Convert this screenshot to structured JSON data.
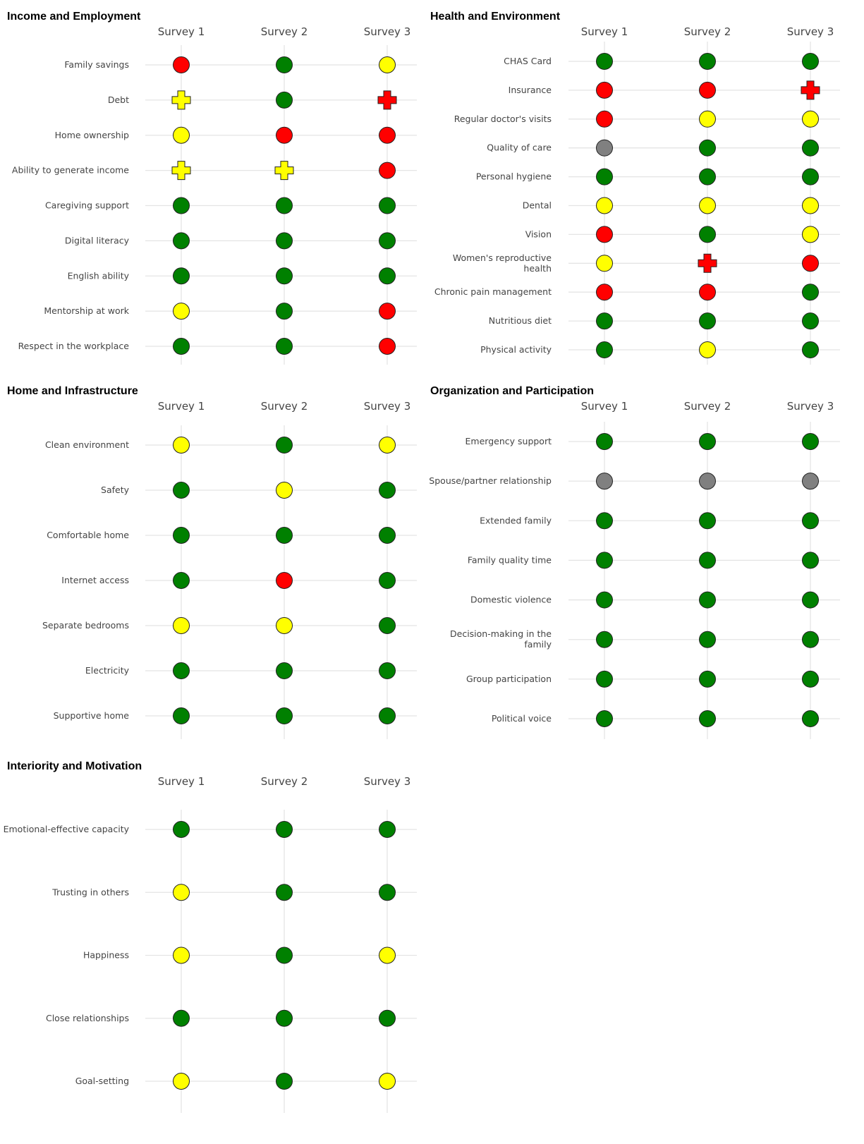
{
  "colors": {
    "green": "#008000",
    "yellow": "#ffff00",
    "red": "#ff0000",
    "gray": "#808080",
    "grid": "#e4e4e4",
    "label": "#444444"
  },
  "chart_data": [
    {
      "type": "scatter",
      "title": "Income and Employment",
      "columns": [
        "Survey 1",
        "Survey 2",
        "Survey 3"
      ],
      "rows": [
        {
          "label": "Family savings",
          "values": [
            {
              "c": "red",
              "s": "circle"
            },
            {
              "c": "green",
              "s": "circle"
            },
            {
              "c": "yellow",
              "s": "circle"
            }
          ]
        },
        {
          "label": "Debt",
          "values": [
            {
              "c": "yellow",
              "s": "plus"
            },
            {
              "c": "green",
              "s": "circle"
            },
            {
              "c": "red",
              "s": "plus"
            }
          ]
        },
        {
          "label": "Home ownership",
          "values": [
            {
              "c": "yellow",
              "s": "circle"
            },
            {
              "c": "red",
              "s": "circle"
            },
            {
              "c": "red",
              "s": "circle"
            }
          ]
        },
        {
          "label": "Ability to generate income",
          "values": [
            {
              "c": "yellow",
              "s": "plus"
            },
            {
              "c": "yellow",
              "s": "plus"
            },
            {
              "c": "red",
              "s": "circle"
            }
          ]
        },
        {
          "label": "Caregiving support",
          "values": [
            {
              "c": "green",
              "s": "circle"
            },
            {
              "c": "green",
              "s": "circle"
            },
            {
              "c": "green",
              "s": "circle"
            }
          ]
        },
        {
          "label": "Digital literacy",
          "values": [
            {
              "c": "green",
              "s": "circle"
            },
            {
              "c": "green",
              "s": "circle"
            },
            {
              "c": "green",
              "s": "circle"
            }
          ]
        },
        {
          "label": "English ability",
          "values": [
            {
              "c": "green",
              "s": "circle"
            },
            {
              "c": "green",
              "s": "circle"
            },
            {
              "c": "green",
              "s": "circle"
            }
          ]
        },
        {
          "label": "Mentorship at work",
          "values": [
            {
              "c": "yellow",
              "s": "circle"
            },
            {
              "c": "green",
              "s": "circle"
            },
            {
              "c": "red",
              "s": "circle"
            }
          ]
        },
        {
          "label": "Respect in the workplace",
          "values": [
            {
              "c": "green",
              "s": "circle"
            },
            {
              "c": "green",
              "s": "circle"
            },
            {
              "c": "red",
              "s": "circle"
            }
          ]
        }
      ]
    },
    {
      "type": "scatter",
      "title": "Health and Environment",
      "columns": [
        "Survey 1",
        "Survey 2",
        "Survey 3"
      ],
      "rows": [
        {
          "label": "CHAS Card",
          "values": [
            {
              "c": "green",
              "s": "circle"
            },
            {
              "c": "green",
              "s": "circle"
            },
            {
              "c": "green",
              "s": "circle"
            }
          ]
        },
        {
          "label": "Insurance",
          "values": [
            {
              "c": "red",
              "s": "circle"
            },
            {
              "c": "red",
              "s": "circle"
            },
            {
              "c": "red",
              "s": "plus"
            }
          ]
        },
        {
          "label": "Regular doctor's visits",
          "values": [
            {
              "c": "red",
              "s": "circle"
            },
            {
              "c": "yellow",
              "s": "circle"
            },
            {
              "c": "yellow",
              "s": "circle"
            }
          ]
        },
        {
          "label": "Quality of care",
          "values": [
            {
              "c": "gray",
              "s": "circle"
            },
            {
              "c": "green",
              "s": "circle"
            },
            {
              "c": "green",
              "s": "circle"
            }
          ]
        },
        {
          "label": "Personal hygiene",
          "values": [
            {
              "c": "green",
              "s": "circle"
            },
            {
              "c": "green",
              "s": "circle"
            },
            {
              "c": "green",
              "s": "circle"
            }
          ]
        },
        {
          "label": "Dental",
          "values": [
            {
              "c": "yellow",
              "s": "circle"
            },
            {
              "c": "yellow",
              "s": "circle"
            },
            {
              "c": "yellow",
              "s": "circle"
            }
          ]
        },
        {
          "label": "Vision",
          "values": [
            {
              "c": "red",
              "s": "circle"
            },
            {
              "c": "green",
              "s": "circle"
            },
            {
              "c": "yellow",
              "s": "circle"
            }
          ]
        },
        {
          "label": "Women's reproductive health",
          "lines": [
            "Women's reproductive",
            "health"
          ],
          "values": [
            {
              "c": "yellow",
              "s": "circle"
            },
            {
              "c": "red",
              "s": "plus"
            },
            {
              "c": "red",
              "s": "circle"
            }
          ]
        },
        {
          "label": "Chronic pain management",
          "values": [
            {
              "c": "red",
              "s": "circle"
            },
            {
              "c": "red",
              "s": "circle"
            },
            {
              "c": "green",
              "s": "circle"
            }
          ]
        },
        {
          "label": "Nutritious diet",
          "values": [
            {
              "c": "green",
              "s": "circle"
            },
            {
              "c": "green",
              "s": "circle"
            },
            {
              "c": "green",
              "s": "circle"
            }
          ]
        },
        {
          "label": "Physical activity",
          "values": [
            {
              "c": "green",
              "s": "circle"
            },
            {
              "c": "yellow",
              "s": "circle"
            },
            {
              "c": "green",
              "s": "circle"
            }
          ]
        }
      ]
    },
    {
      "type": "scatter",
      "title": "Home and Infrastructure",
      "columns": [
        "Survey 1",
        "Survey 2",
        "Survey 3"
      ],
      "rows": [
        {
          "label": "Clean environment",
          "values": [
            {
              "c": "yellow",
              "s": "circle"
            },
            {
              "c": "green",
              "s": "circle"
            },
            {
              "c": "yellow",
              "s": "circle"
            }
          ]
        },
        {
          "label": "Safety",
          "values": [
            {
              "c": "green",
              "s": "circle"
            },
            {
              "c": "yellow",
              "s": "circle"
            },
            {
              "c": "green",
              "s": "circle"
            }
          ]
        },
        {
          "label": "Comfortable home",
          "values": [
            {
              "c": "green",
              "s": "circle"
            },
            {
              "c": "green",
              "s": "circle"
            },
            {
              "c": "green",
              "s": "circle"
            }
          ]
        },
        {
          "label": "Internet access",
          "values": [
            {
              "c": "green",
              "s": "circle"
            },
            {
              "c": "red",
              "s": "circle"
            },
            {
              "c": "green",
              "s": "circle"
            }
          ]
        },
        {
          "label": "Separate bedrooms",
          "values": [
            {
              "c": "yellow",
              "s": "circle"
            },
            {
              "c": "yellow",
              "s": "circle"
            },
            {
              "c": "green",
              "s": "circle"
            }
          ]
        },
        {
          "label": "Electricity",
          "values": [
            {
              "c": "green",
              "s": "circle"
            },
            {
              "c": "green",
              "s": "circle"
            },
            {
              "c": "green",
              "s": "circle"
            }
          ]
        },
        {
          "label": "Supportive home",
          "values": [
            {
              "c": "green",
              "s": "circle"
            },
            {
              "c": "green",
              "s": "circle"
            },
            {
              "c": "green",
              "s": "circle"
            }
          ]
        }
      ]
    },
    {
      "type": "scatter",
      "title": "Organization and Participation",
      "columns": [
        "Survey 1",
        "Survey 2",
        "Survey 3"
      ],
      "rows": [
        {
          "label": "Emergency support",
          "values": [
            {
              "c": "green",
              "s": "circle"
            },
            {
              "c": "green",
              "s": "circle"
            },
            {
              "c": "green",
              "s": "circle"
            }
          ]
        },
        {
          "label": "Spouse/partner relationship",
          "values": [
            {
              "c": "gray",
              "s": "circle"
            },
            {
              "c": "gray",
              "s": "circle"
            },
            {
              "c": "gray",
              "s": "circle"
            }
          ]
        },
        {
          "label": "Extended family",
          "values": [
            {
              "c": "green",
              "s": "circle"
            },
            {
              "c": "green",
              "s": "circle"
            },
            {
              "c": "green",
              "s": "circle"
            }
          ]
        },
        {
          "label": "Family quality time",
          "values": [
            {
              "c": "green",
              "s": "circle"
            },
            {
              "c": "green",
              "s": "circle"
            },
            {
              "c": "green",
              "s": "circle"
            }
          ]
        },
        {
          "label": "Domestic violence",
          "values": [
            {
              "c": "green",
              "s": "circle"
            },
            {
              "c": "green",
              "s": "circle"
            },
            {
              "c": "green",
              "s": "circle"
            }
          ]
        },
        {
          "label": "Decision-making in the family",
          "lines": [
            "Decision-making in the",
            "family"
          ],
          "values": [
            {
              "c": "green",
              "s": "circle"
            },
            {
              "c": "green",
              "s": "circle"
            },
            {
              "c": "green",
              "s": "circle"
            }
          ]
        },
        {
          "label": "Group participation",
          "values": [
            {
              "c": "green",
              "s": "circle"
            },
            {
              "c": "green",
              "s": "circle"
            },
            {
              "c": "green",
              "s": "circle"
            }
          ]
        },
        {
          "label": "Political voice",
          "values": [
            {
              "c": "green",
              "s": "circle"
            },
            {
              "c": "green",
              "s": "circle"
            },
            {
              "c": "green",
              "s": "circle"
            }
          ]
        }
      ]
    },
    {
      "type": "scatter",
      "title": "Interiority and Motivation",
      "columns": [
        "Survey 1",
        "Survey 2",
        "Survey 3"
      ],
      "rows": [
        {
          "label": "Emotional-effective capacity",
          "values": [
            {
              "c": "green",
              "s": "circle"
            },
            {
              "c": "green",
              "s": "circle"
            },
            {
              "c": "green",
              "s": "circle"
            }
          ]
        },
        {
          "label": "Trusting in others",
          "values": [
            {
              "c": "yellow",
              "s": "circle"
            },
            {
              "c": "green",
              "s": "circle"
            },
            {
              "c": "green",
              "s": "circle"
            }
          ]
        },
        {
          "label": "Happiness",
          "values": [
            {
              "c": "yellow",
              "s": "circle"
            },
            {
              "c": "green",
              "s": "circle"
            },
            {
              "c": "yellow",
              "s": "circle"
            }
          ]
        },
        {
          "label": "Close relationships",
          "values": [
            {
              "c": "green",
              "s": "circle"
            },
            {
              "c": "green",
              "s": "circle"
            },
            {
              "c": "green",
              "s": "circle"
            }
          ]
        },
        {
          "label": "Goal-setting",
          "values": [
            {
              "c": "yellow",
              "s": "circle"
            },
            {
              "c": "green",
              "s": "circle"
            },
            {
              "c": "yellow",
              "s": "circle"
            }
          ]
        }
      ]
    }
  ]
}
